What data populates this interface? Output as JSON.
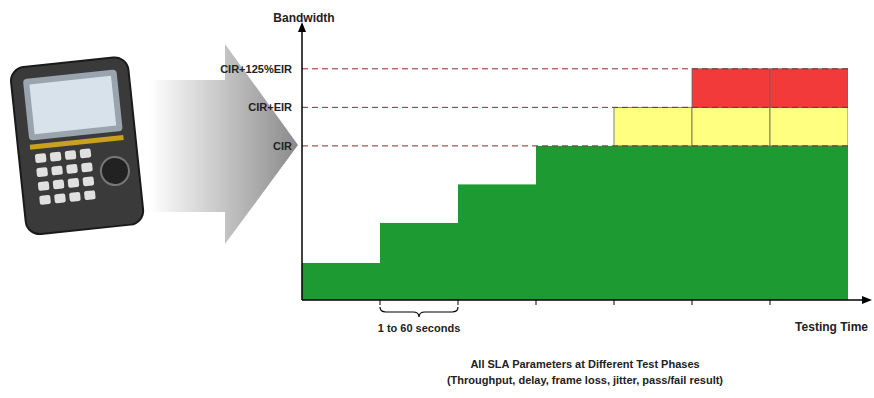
{
  "chart_data": {
    "type": "bar",
    "stacked": true,
    "x_label": "Testing Time",
    "y_label": "Bandwidth",
    "annotation": "1 to 60 seconds",
    "caption": [
      "All SLA Parameters at Different Test Phases",
      "(Throughput, delay, frame loss, jitter, pass/fail result)"
    ],
    "categories": [
      null,
      null,
      null,
      null,
      null,
      null,
      null
    ],
    "series": [
      {
        "color": "#1e9a32",
        "values": [
          24,
          50,
          75,
          100,
          100,
          100,
          100
        ]
      },
      {
        "color": "#ffff80",
        "values": [
          0,
          0,
          0,
          0,
          25,
          25,
          25
        ]
      },
      {
        "color": "#f23a3a",
        "values": [
          0,
          0,
          0,
          0,
          0,
          25,
          25
        ]
      }
    ],
    "ylim": [
      0,
      170
    ],
    "yticks": [
      {
        "value": 100,
        "label": "CIR"
      },
      {
        "value": 125,
        "label": "CIR+EIR"
      },
      {
        "value": 150,
        "label": "CIR+125%EIR"
      }
    ],
    "grid": true,
    "tick_labels": "y"
  }
}
